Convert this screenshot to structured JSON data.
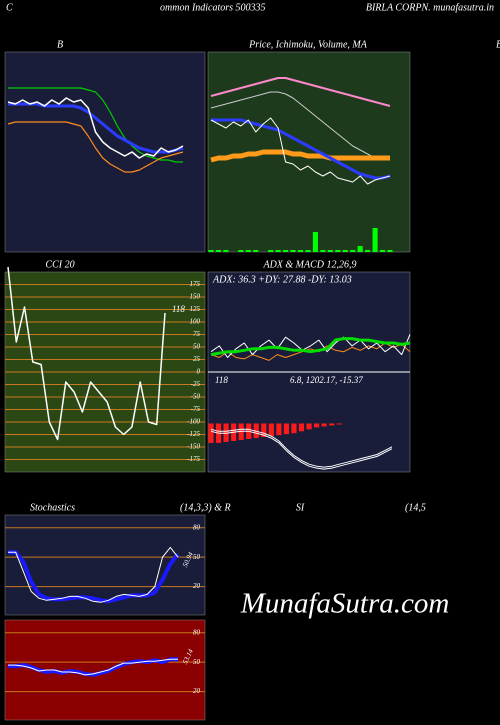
{
  "header": {
    "left": "C",
    "center": "ommon  Indicators 500335",
    "right": "BIRLA CORPN. munafasutra.in",
    "side_mark": "B"
  },
  "watermark": "MunafaSutra.com",
  "chart_data": [
    {
      "type": "line",
      "title": "B",
      "background": "#1a1d3a",
      "categories": [
        null,
        null,
        null,
        null,
        null,
        null,
        null,
        null,
        null,
        null,
        null,
        null,
        null,
        null,
        null,
        null,
        null,
        null,
        null,
        null,
        null,
        null,
        null,
        null,
        null
      ],
      "ylim": [
        0,
        100
      ],
      "series": [
        {
          "color": "#00cc00",
          "width": 1.2,
          "values": [
            82,
            82,
            82,
            82,
            82,
            82,
            82,
            82,
            82,
            82,
            82,
            81,
            80,
            76,
            70,
            63,
            57,
            53,
            50,
            48,
            47,
            46,
            46,
            45,
            45
          ]
        },
        {
          "color": "#ff8c1a",
          "width": 1.2,
          "values": [
            64,
            65,
            65,
            65,
            65,
            65,
            65,
            65,
            65,
            64,
            63,
            58,
            52,
            47,
            44,
            42,
            40,
            40,
            41,
            43,
            45,
            47,
            48,
            49,
            50
          ]
        },
        {
          "color": "#2a3cff",
          "width": 3,
          "values": [
            74,
            74,
            74,
            74,
            74,
            73,
            73,
            73,
            73,
            73,
            72,
            70,
            67,
            64,
            61,
            58,
            56,
            54,
            52,
            51,
            50,
            50,
            50,
            51,
            52
          ]
        },
        {
          "color": "#ffffff",
          "width": 1.5,
          "values": [
            75,
            74,
            76,
            74,
            75,
            73,
            76,
            74,
            77,
            75,
            76,
            72,
            60,
            55,
            52,
            50,
            48,
            50,
            47,
            49,
            48,
            52,
            50,
            51,
            53
          ]
        }
      ]
    },
    {
      "type": "line",
      "title": "Price, Ichimoku, Volume, MA",
      "background": "#1e3a1c",
      "categories": [
        null,
        null,
        null,
        null,
        null,
        null,
        null,
        null,
        null,
        null,
        null,
        null,
        null,
        null,
        null,
        null,
        null,
        null,
        null,
        null,
        null,
        null,
        null,
        null,
        null
      ],
      "ylim": [
        0,
        100
      ],
      "series": [
        {
          "type": "bar",
          "color": "#00ff00",
          "values": [
            1,
            1,
            1,
            0,
            1,
            1,
            1,
            0,
            1,
            1,
            1,
            1,
            1,
            1,
            10,
            1,
            1,
            1,
            1,
            1,
            3,
            1,
            12,
            1,
            1
          ]
        },
        {
          "color": "#ff88cc",
          "width": 2,
          "values": [
            78,
            79,
            80,
            81,
            82,
            83,
            84,
            85,
            86,
            87,
            87,
            86,
            85,
            84,
            83,
            82,
            81,
            80,
            79,
            78,
            77,
            76,
            75,
            74,
            73
          ]
        },
        {
          "color": "#cccccc",
          "width": 1,
          "values": [
            72,
            73,
            74,
            75,
            76,
            77,
            78,
            79,
            80,
            80,
            79,
            77,
            74,
            71,
            68,
            65,
            62,
            59,
            56,
            53,
            51,
            49,
            47,
            46,
            46
          ]
        },
        {
          "color": "#ff9a1a",
          "width": 5,
          "values": [
            46,
            47,
            47,
            48,
            48,
            49,
            49,
            50,
            50,
            50,
            50,
            49,
            49,
            48,
            48,
            48,
            47,
            47,
            47,
            47,
            47,
            47,
            47,
            47,
            47
          ]
        },
        {
          "color": "#2a3cff",
          "width": 3,
          "values": [
            66,
            66,
            66,
            66,
            66,
            65,
            64,
            63,
            62,
            61,
            59,
            57,
            55,
            53,
            51,
            49,
            47,
            45,
            43,
            41,
            39,
            38,
            37,
            37,
            38
          ]
        },
        {
          "color": "#ffffff",
          "width": 1,
          "values": [
            66,
            64,
            62,
            65,
            63,
            66,
            60,
            64,
            67,
            62,
            45,
            44,
            41,
            43,
            40,
            38,
            40,
            37,
            36,
            35,
            38,
            34,
            36,
            37,
            38
          ]
        }
      ]
    },
    {
      "type": "line",
      "title": "CCI 20",
      "background": "#2b4714",
      "grid": true,
      "grid_color": "#c8781e",
      "categories": [
        null,
        null,
        null,
        null,
        null,
        null,
        null,
        null,
        null,
        null,
        null,
        null,
        null,
        null,
        null,
        null,
        null,
        null,
        null,
        null
      ],
      "ylim": [
        -200,
        200
      ],
      "yticks": [
        175,
        150,
        125,
        100,
        75,
        50,
        25,
        0,
        -25,
        -50,
        -75,
        -100,
        -125,
        -150,
        -175
      ],
      "annotations": [
        "118"
      ],
      "series": [
        {
          "color": "#ffffff",
          "width": 1.5,
          "values": [
            210,
            60,
            130,
            20,
            15,
            -100,
            -135,
            -20,
            -40,
            -80,
            -20,
            -40,
            -60,
            -110,
            -125,
            -110,
            -20,
            -100,
            -105,
            118
          ]
        }
      ]
    },
    {
      "type": "line",
      "title": "ADX  & MACD 12,26,9",
      "subtitle": "ADX: 36.3 +DY: 27.88  -DY: 13.03",
      "background": "#1a1d3a",
      "categories": [
        null,
        null,
        null,
        null,
        null,
        null,
        null,
        null,
        null,
        null,
        null,
        null,
        null,
        null,
        null,
        null,
        null,
        null,
        null,
        null,
        null,
        null,
        null,
        null,
        null
      ],
      "ylim": [
        0,
        60
      ],
      "series": [
        {
          "color": "#ff8c1a",
          "width": 1,
          "values": [
            12,
            10,
            14,
            10,
            9,
            12,
            10,
            8,
            12,
            10,
            12,
            14,
            16,
            14,
            18,
            15,
            14,
            17,
            15,
            18,
            16,
            20,
            17,
            19,
            14
          ]
        },
        {
          "color": "#ffffff",
          "width": 1,
          "values": [
            14,
            18,
            10,
            16,
            20,
            12,
            18,
            22,
            16,
            24,
            20,
            15,
            18,
            22,
            14,
            20,
            24,
            18,
            22,
            16,
            20,
            14,
            18,
            12,
            26
          ]
        },
        {
          "color": "#00dd00",
          "width": 3,
          "values": [
            12,
            13,
            14,
            14,
            15,
            16,
            16,
            17,
            17,
            16,
            15,
            15,
            14,
            15,
            16,
            22,
            23,
            23,
            22,
            22,
            21,
            20,
            20,
            19,
            20
          ]
        }
      ]
    },
    {
      "type": "line",
      "annotations": [
        "118",
        "6.8,  1202.17,  -15.37"
      ],
      "categories": [
        null,
        null,
        null,
        null,
        null,
        null,
        null,
        null,
        null,
        null,
        null,
        null,
        null,
        null,
        null,
        null,
        null,
        null,
        null,
        null,
        null,
        null,
        null,
        null,
        null
      ],
      "ylim": [
        -50,
        50
      ],
      "series": [
        {
          "type": "bar",
          "color": "#ff1a1a",
          "values": [
            -20,
            -20,
            -19,
            -18,
            -17,
            -16,
            -15,
            -14,
            -13,
            -12,
            -11,
            -10,
            -8,
            -6,
            -4,
            -3,
            -2,
            -1,
            0,
            0,
            0,
            0,
            0,
            0,
            0
          ]
        },
        {
          "color": "#ffffff",
          "width": 1,
          "values": [
            -6,
            -8,
            -8,
            -7,
            -6,
            -6,
            -8,
            -10,
            -13,
            -18,
            -26,
            -33,
            -38,
            -42,
            -44,
            -45,
            -44,
            -42,
            -40,
            -38,
            -36,
            -34,
            -32,
            -28,
            -24
          ]
        },
        {
          "color": "#ffffff",
          "width": 1,
          "values": [
            -8,
            -10,
            -10,
            -9,
            -8,
            -8,
            -10,
            -12,
            -15,
            -20,
            -28,
            -35,
            -40,
            -44,
            -46,
            -47,
            -46,
            -44,
            -42,
            -40,
            -38,
            -36,
            -34,
            -30,
            -26
          ]
        }
      ]
    },
    {
      "type": "line",
      "title": "Stochastics",
      "subtitle": "(14,3,3) & R",
      "background": "#1a1d3a",
      "grid": true,
      "grid_color": "#c8781e",
      "categories": [
        null,
        null,
        null,
        null,
        null,
        null,
        null,
        null,
        null,
        null,
        null,
        null,
        null,
        null,
        null,
        null,
        null,
        null,
        null,
        null,
        null,
        null,
        null
      ],
      "ylim": [
        -9,
        93
      ],
      "yticks": [
        80,
        50,
        20
      ],
      "annotations": [
        "50.94"
      ],
      "series": [
        {
          "color": "#1a1aff",
          "width": 4,
          "values": [
            55,
            55,
            45,
            25,
            12,
            8,
            7,
            7,
            8,
            9,
            9,
            8,
            6,
            5,
            7,
            9,
            11,
            11,
            11,
            14,
            27,
            43,
            53
          ]
        },
        {
          "color": "#ffffff",
          "width": 1,
          "values": [
            55,
            55,
            35,
            15,
            8,
            6,
            7,
            8,
            10,
            10,
            8,
            5,
            4,
            6,
            10,
            12,
            11,
            10,
            12,
            20,
            50,
            60,
            50
          ]
        }
      ]
    },
    {
      "type": "line",
      "title": "SI",
      "subtitle": "(14,5",
      "background": "#8b0000",
      "grid": true,
      "grid_color": "#c8781e",
      "categories": [
        null,
        null,
        null,
        null,
        null,
        null,
        null,
        null,
        null,
        null,
        null,
        null,
        null,
        null,
        null,
        null,
        null,
        null,
        null,
        null,
        null,
        null,
        null
      ],
      "ylim": [
        -9,
        93
      ],
      "yticks": [
        80,
        50,
        20
      ],
      "annotations": [
        "53.14"
      ],
      "series": [
        {
          "color": "#1a1aff",
          "width": 4,
          "values": [
            46,
            46,
            47,
            45,
            42,
            40,
            41,
            39,
            41,
            40,
            38,
            37,
            39,
            41,
            45,
            48,
            50,
            51,
            50,
            52,
            50,
            53,
            53
          ]
        },
        {
          "color": "#ffffff",
          "width": 1,
          "values": [
            47,
            47,
            46,
            44,
            41,
            42,
            42,
            40,
            40,
            39,
            37,
            38,
            40,
            42,
            46,
            49,
            49,
            50,
            51,
            51,
            52,
            53,
            53
          ]
        }
      ]
    }
  ]
}
